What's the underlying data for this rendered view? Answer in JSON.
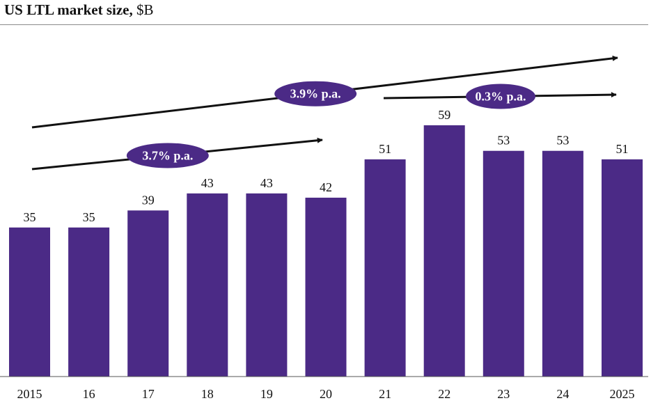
{
  "chart_data": {
    "type": "bar",
    "title_bold": "US LTL market size,",
    "title_unit": "$B",
    "categories": [
      "2015",
      "16",
      "17",
      "18",
      "19",
      "20",
      "21",
      "22",
      "23",
      "24",
      "2025"
    ],
    "values": [
      35,
      35,
      39,
      43,
      43,
      42,
      51,
      59,
      53,
      53,
      51
    ],
    "ylim": [
      0,
      59
    ],
    "xlabel": "",
    "ylabel": "",
    "bar_color": "#4b2a86",
    "annotations": [
      {
        "label": "3.9% p.a.",
        "from_category": "2015",
        "to_category": "2025"
      },
      {
        "label": "3.7% p.a.",
        "from_category": "2015",
        "to_category": "20"
      },
      {
        "label": "0.3% p.a.",
        "from_category": "21",
        "to_category": "2025"
      }
    ]
  }
}
